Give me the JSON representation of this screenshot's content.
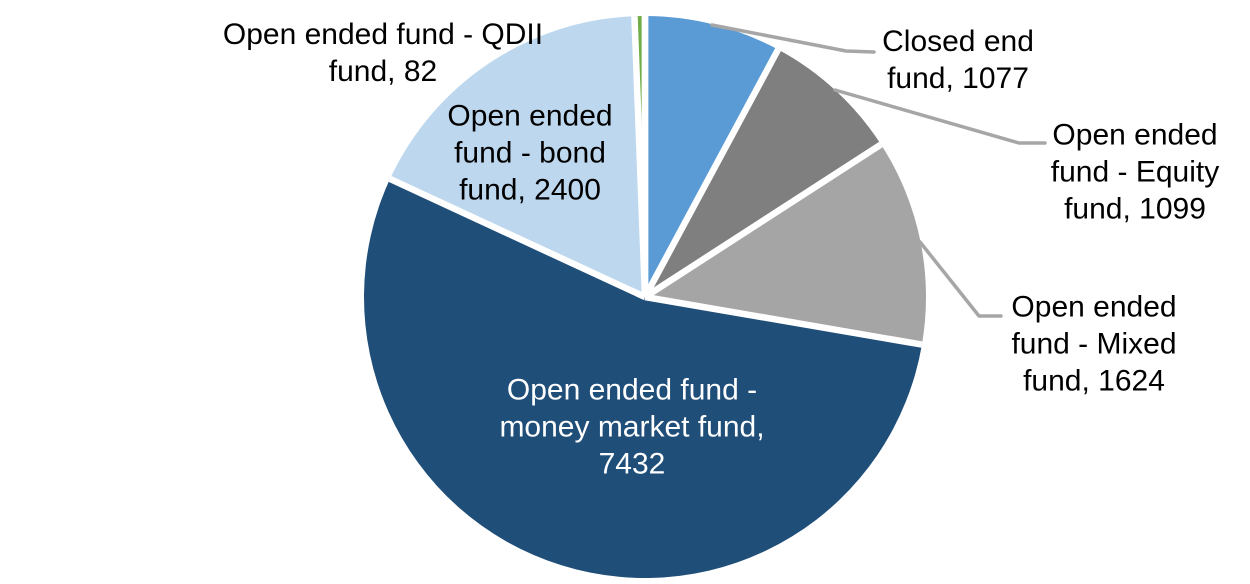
{
  "chart_data": {
    "type": "pie",
    "title": "",
    "background_color": "#FFFFFF",
    "start_angle_deg": 0,
    "direction": "clockwise",
    "legend": "none",
    "separator_color": "#FFFFFF",
    "leader_line_color": "#A6A6A6",
    "slices": [
      {
        "id": "closed-end-fund",
        "name": "Closed end fund",
        "value": 1077,
        "color": "#5B9BD5",
        "label_placement": "outside",
        "label_color": "#000000",
        "label_lines": [
          "Closed end",
          "fund, 1077"
        ]
      },
      {
        "id": "equity-fund",
        "name": "Open ended fund - Equity fund",
        "value": 1099,
        "color": "#7F7F7F",
        "label_placement": "outside",
        "label_color": "#000000",
        "label_lines": [
          "Open ended",
          "fund - Equity",
          "fund, 1099"
        ]
      },
      {
        "id": "mixed-fund",
        "name": "Open ended fund - Mixed fund",
        "value": 1624,
        "color": "#A5A5A5",
        "label_placement": "outside",
        "label_color": "#000000",
        "label_lines": [
          "Open ended",
          "fund - Mixed",
          "fund, 1624"
        ]
      },
      {
        "id": "money-market-fund",
        "name": "Open ended fund - money market fund",
        "value": 7432,
        "color": "#1F4E79",
        "label_placement": "inside",
        "label_color": "#FFFFFF",
        "label_lines": [
          "Open ended fund -",
          "money market fund,",
          "7432"
        ]
      },
      {
        "id": "bond-fund",
        "name": "Open ended fund - bond fund",
        "value": 2400,
        "color": "#BDD7EE",
        "label_placement": "inside",
        "label_color": "#000000",
        "label_lines": [
          "Open ended",
          "fund - bond",
          "fund, 2400"
        ]
      },
      {
        "id": "qdii-fund",
        "name": "Open ended fund - QDII fund",
        "value": 82,
        "color": "#70AD47",
        "label_placement": "outside",
        "label_color": "#000000",
        "label_lines": [
          "Open ended fund - QDII",
          "fund, 82"
        ]
      }
    ]
  }
}
